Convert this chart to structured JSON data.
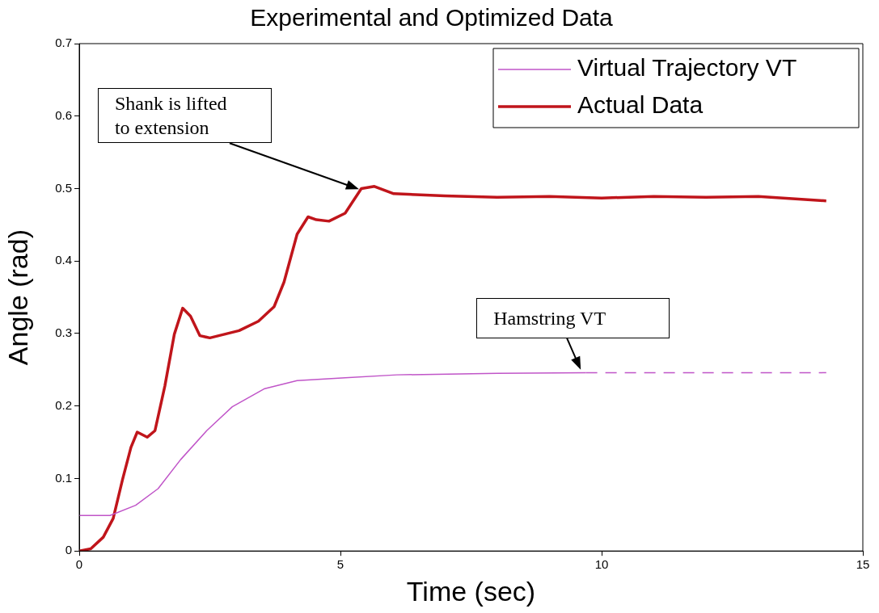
{
  "chart_data": {
    "type": "line",
    "title": "Experimental and Optimized Data",
    "xlabel": "Time (sec)",
    "ylabel": "Angle (rad)",
    "xlim": [
      0,
      15
    ],
    "xticks": [
      0,
      5,
      10,
      15
    ],
    "ylim": [
      0,
      0.7
    ],
    "yticks": [
      0,
      0.1,
      0.2,
      0.3,
      0.4,
      0.5,
      0.6,
      0.7
    ],
    "grid": false,
    "legend": "top right",
    "marker": "none",
    "series": [
      {
        "name": "Virtual Trajectory VT",
        "color": "#c055c8",
        "line_style": "solid",
        "x": [
          0,
          0.59,
          1.08,
          1.51,
          1.94,
          2.44,
          2.93,
          3.55,
          4.17,
          5.09,
          6.08,
          8,
          9.7
        ],
        "values": [
          0.049,
          0.049,
          0.063,
          0.086,
          0.126,
          0.166,
          0.199,
          0.224,
          0.235,
          0.239,
          0.243,
          0.245,
          0.246
        ]
      },
      {
        "name": "Actual Data",
        "color": "#c0151b",
        "line_style": "solid",
        "x": [
          0,
          0.22,
          0.46,
          0.65,
          0.83,
          0.99,
          1.11,
          1.3,
          1.45,
          1.64,
          1.82,
          1.98,
          2.13,
          2.31,
          2.5,
          3.06,
          3.43,
          3.73,
          3.92,
          4.17,
          4.38,
          4.54,
          4.78,
          5.09,
          5.4,
          5.65,
          6.02,
          7,
          8,
          9,
          10,
          11,
          12,
          13,
          14.3
        ],
        "values": [
          0,
          0.003,
          0.019,
          0.045,
          0.099,
          0.143,
          0.164,
          0.157,
          0.166,
          0.228,
          0.299,
          0.335,
          0.324,
          0.297,
          0.294,
          0.304,
          0.317,
          0.337,
          0.371,
          0.437,
          0.461,
          0.457,
          0.455,
          0.466,
          0.5,
          0.503,
          0.493,
          0.49,
          0.488,
          0.489,
          0.487,
          0.489,
          0.488,
          0.489,
          0.483
        ]
      },
      {
        "color": "#c055c8",
        "line_style": "dashed",
        "x": [
          9.7,
          14.3
        ],
        "values": [
          0.246,
          0.246
        ]
      }
    ],
    "annotations": [
      "Shank is lifted to extension",
      {
        "text": "Hamstring VT",
        "x": 9.6,
        "y": 0.25
      }
    ]
  }
}
